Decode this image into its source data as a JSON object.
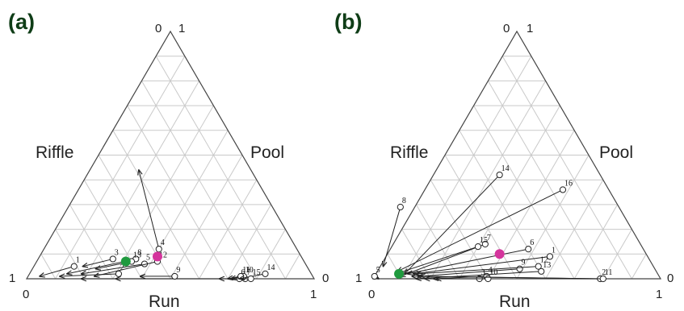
{
  "panels": [
    {
      "id": "a",
      "label": "(a)",
      "axis_labels": {
        "left": "Riffle",
        "right": "Pool",
        "bottom": "Run"
      },
      "corner_labels": {
        "top_left": "0",
        "top_right": "1",
        "bottom_left_outer": "1",
        "bottom_left_inner": "0",
        "bottom_right_outer": "0",
        "bottom_right_inner": "1"
      },
      "arrows": [
        {
          "label": "1",
          "start": [
            0.81,
            0.05
          ],
          "end": [
            0.95,
            0.01
          ]
        },
        {
          "label": "2",
          "start": [
            0.67,
            0.02
          ],
          "end": [
            0.88,
            0.01
          ]
        },
        {
          "label": "3",
          "start": [
            0.66,
            0.08
          ],
          "end": [
            0.78,
            0.05
          ]
        },
        {
          "label": "4",
          "start": [
            0.48,
            0.12
          ],
          "end": [
            0.39,
            0.44
          ]
        },
        {
          "label": "5",
          "start": [
            0.56,
            0.06
          ],
          "end": [
            0.8,
            0.02
          ]
        },
        {
          "label": "6",
          "start": [
            0.26,
            0.0
          ],
          "end": [
            0.81,
            0.0
          ]
        },
        {
          "label": "7",
          "start": [
            0.24,
            0.0
          ],
          "end": [
            0.69,
            0.0
          ]
        },
        {
          "label": "8",
          "start": [
            0.58,
            0.08
          ],
          "end": [
            0.85,
            0.02
          ]
        },
        {
          "label": "9",
          "start": [
            0.48,
            0.01
          ],
          "end": [
            0.6,
            0.01
          ]
        },
        {
          "label": "10",
          "start": [
            0.24,
            0.01
          ],
          "end": [
            0.29,
            0.0
          ]
        },
        {
          "label": "11",
          "start": [
            0.25,
            0.01
          ],
          "end": [
            0.3,
            0.0
          ]
        },
        {
          "label": "12",
          "start": [
            0.51,
            0.07
          ],
          "end": [
            0.76,
            0.01
          ]
        },
        {
          "label": "13",
          "start": [
            0.6,
            0.07
          ],
          "end": [
            0.74,
            0.04
          ]
        },
        {
          "label": "14",
          "start": [
            0.16,
            0.02
          ],
          "end": [
            0.26,
            0.0
          ]
        },
        {
          "label": "15",
          "start": [
            0.22,
            0.0
          ],
          "end": [
            0.33,
            0.0
          ]
        }
      ],
      "markers": [
        {
          "name": "green",
          "color": "#1f9a3e",
          "pos": [
            0.62,
            0.07
          ]
        },
        {
          "name": "magenta",
          "color": "#d4349c",
          "pos": [
            0.5,
            0.09
          ]
        }
      ]
    },
    {
      "id": "b",
      "label": "(b)",
      "axis_labels": {
        "left": "Riffle",
        "right": "Pool",
        "bottom": "Run"
      },
      "corner_labels": {
        "top_left": "0",
        "top_right": "1",
        "bottom_left_outer": "1",
        "bottom_left_inner": "0",
        "bottom_right_outer": "0",
        "bottom_right_inner": "1"
      },
      "arrows": [
        {
          "label": "1",
          "start": [
            0.34,
            0.09
          ],
          "end": [
            0.85,
            0.02
          ]
        },
        {
          "label": "2",
          "start": [
            0.21,
            0.0
          ],
          "end": [
            0.84,
            0.01
          ]
        },
        {
          "label": "3",
          "start": [
            0.63,
            0.0
          ],
          "end": [
            0.78,
            0.0
          ]
        },
        {
          "label": "4",
          "start": [
            0.6,
            0.01
          ],
          "end": [
            0.79,
            0.0
          ]
        },
        {
          "label": "5",
          "start": [
            0.99,
            0.01
          ],
          "end": [
            0.98,
            0.0
          ]
        },
        {
          "label": "6",
          "start": [
            0.4,
            0.12
          ],
          "end": [
            0.87,
            0.02
          ]
        },
        {
          "label": "7",
          "start": [
            0.54,
            0.14
          ],
          "end": [
            0.9,
            0.01
          ]
        },
        {
          "label": "8",
          "start": [
            0.76,
            0.29
          ],
          "end": [
            0.94,
            0.05
          ]
        },
        {
          "label": "9",
          "start": [
            0.47,
            0.04
          ],
          "end": [
            0.83,
            0.01
          ]
        },
        {
          "label": "10",
          "start": [
            0.6,
            0.0
          ],
          "end": [
            0.82,
            0.0
          ]
        },
        {
          "label": "11",
          "start": [
            0.2,
            0.0
          ],
          "end": [
            0.86,
            0.01
          ]
        },
        {
          "label": "12",
          "start": [
            0.4,
            0.05
          ],
          "end": [
            0.84,
            0.02
          ]
        },
        {
          "label": "13",
          "start": [
            0.4,
            0.03
          ],
          "end": [
            0.85,
            0.0
          ]
        },
        {
          "label": "14",
          "start": [
            0.35,
            0.42
          ],
          "end": [
            0.88,
            0.02
          ]
        },
        {
          "label": "15",
          "start": [
            0.57,
            0.13
          ],
          "end": [
            0.91,
            0.02
          ]
        },
        {
          "label": "16",
          "start": [
            0.16,
            0.36
          ],
          "end": [
            0.9,
            0.03
          ]
        }
      ],
      "markers": [
        {
          "name": "green",
          "color": "#1f9a3e",
          "pos": [
            0.9,
            0.02
          ]
        },
        {
          "name": "magenta",
          "color": "#d4349c",
          "pos": [
            0.51,
            0.1
          ]
        }
      ]
    }
  ]
}
